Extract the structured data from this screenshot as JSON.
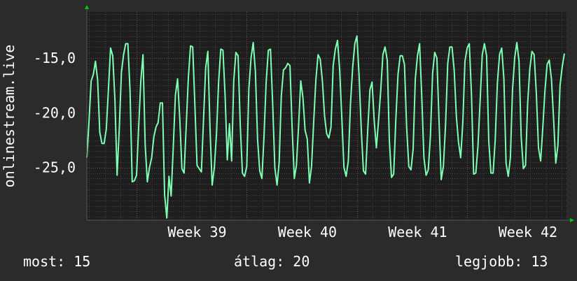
{
  "chart_data": {
    "type": "line",
    "ylabel": "onlinestream.live",
    "y_ticks": [
      "-15,0",
      "-20,0",
      "-25,0"
    ],
    "y_tick_values": [
      -15,
      -20,
      -25
    ],
    "ylim": [
      -29.8,
      -10.8
    ],
    "x_tick_labels": [
      "Week 39",
      "Week 40",
      "Week 41",
      "Week 42"
    ],
    "x_tick_positions": [
      0.55,
      1.55,
      2.55,
      3.55
    ],
    "xlim": [
      -0.45,
      3.9
    ],
    "grid": true,
    "colors": {
      "background": "#2b2b2b",
      "plot": "#1e1e1e",
      "grid": "#505050",
      "major_grid": "#6a4a4a",
      "line": "#7dffb4",
      "arrow": "#00cc00"
    },
    "series": [
      {
        "values": [
          -24.1,
          -20.8,
          -17.1,
          -16.5,
          -15.3,
          -17.0,
          -21.8,
          -22.8,
          -22.8,
          -21.5,
          -17.8,
          -14.1,
          -14.8,
          -18.8,
          -25.7,
          -21.5,
          -16.3,
          -14.7,
          -13.7,
          -13.7,
          -18.0,
          -26.3,
          -26.2,
          -25.7,
          -21.2,
          -17.1,
          -14.7,
          -22.9,
          -26.3,
          -25.0,
          -24.1,
          -22.2,
          -21.3,
          -20.9,
          -19.1,
          -19.1,
          -27.5,
          -29.6,
          -25.8,
          -27.6,
          -23.2,
          -18.4,
          -16.9,
          -20.5,
          -25.1,
          -25.5,
          -21.1,
          -16.8,
          -13.9,
          -14.0,
          -19.3,
          -24.8,
          -25.1,
          -25.4,
          -20.7,
          -15.9,
          -14.4,
          -21.4,
          -26.6,
          -25.0,
          -21.9,
          -17.2,
          -14.2,
          -14.3,
          -18.5,
          -24.3,
          -21.0,
          -24.4,
          -17.1,
          -14.5,
          -14.8,
          -21.1,
          -25.5,
          -25.8,
          -24.9,
          -17.8,
          -15.0,
          -13.6,
          -16.2,
          -22.4,
          -25.3,
          -26.0,
          -22.2,
          -17.2,
          -14.3,
          -14.2,
          -19.2,
          -25.0,
          -26.6,
          -24.5,
          -18.5,
          -16.1,
          -15.9,
          -15.5,
          -15.7,
          -21.4,
          -26.0,
          -24.8,
          -21.2,
          -17.1,
          -18.6,
          -21.6,
          -22.4,
          -26.4,
          -24.9,
          -20.8,
          -17.0,
          -14.7,
          -15.1,
          -17.1,
          -20.3,
          -21.9,
          -22.3,
          -21.3,
          -15.7,
          -14.2,
          -13.4,
          -16.1,
          -20.4,
          -25.0,
          -25.8,
          -24.4,
          -19.2,
          -15.9,
          -13.7,
          -13.0,
          -16.6,
          -21.5,
          -25.3,
          -25.6,
          -21.5,
          -17.9,
          -17.2,
          -20.7,
          -23.2,
          -20.7,
          -18.0,
          -14.7,
          -14.0,
          -15.2,
          -22.5,
          -25.9,
          -25.6,
          -20.6,
          -16.5,
          -14.8,
          -14.8,
          -15.6,
          -21.3,
          -24.9,
          -25.2,
          -23.3,
          -16.9,
          -14.8,
          -13.7,
          -18.5,
          -24.1,
          -25.7,
          -25.2,
          -22.1,
          -16.4,
          -14.5,
          -15.0,
          -20.8,
          -26.1,
          -24.9,
          -21.1,
          -15.5,
          -14.0,
          -14.0,
          -16.1,
          -20.3,
          -22.7,
          -24.1,
          -20.8,
          -15.3,
          -14.1,
          -13.7,
          -18.3,
          -25.6,
          -25.5,
          -23.0,
          -19.0,
          -14.7,
          -13.7,
          -14.8,
          -22.6,
          -25.5,
          -25.5,
          -22.5,
          -17.3,
          -14.7,
          -14.1,
          -16.9,
          -24.6,
          -25.8,
          -24.1,
          -17.9,
          -15.0,
          -13.6,
          -15.3,
          -22.2,
          -25.1,
          -24.8,
          -19.2,
          -16.0,
          -14.4,
          -14.7,
          -18.2,
          -23.2,
          -24.4,
          -21.4,
          -18.0,
          -15.6,
          -15.2,
          -16.9,
          -20.6,
          -24.6,
          -23.0,
          -17.5,
          -15.8,
          -14.6
        ]
      }
    ]
  },
  "footer": {
    "now": "most: 15",
    "average": "átlag: 20",
    "best": "legjobb: 13"
  }
}
